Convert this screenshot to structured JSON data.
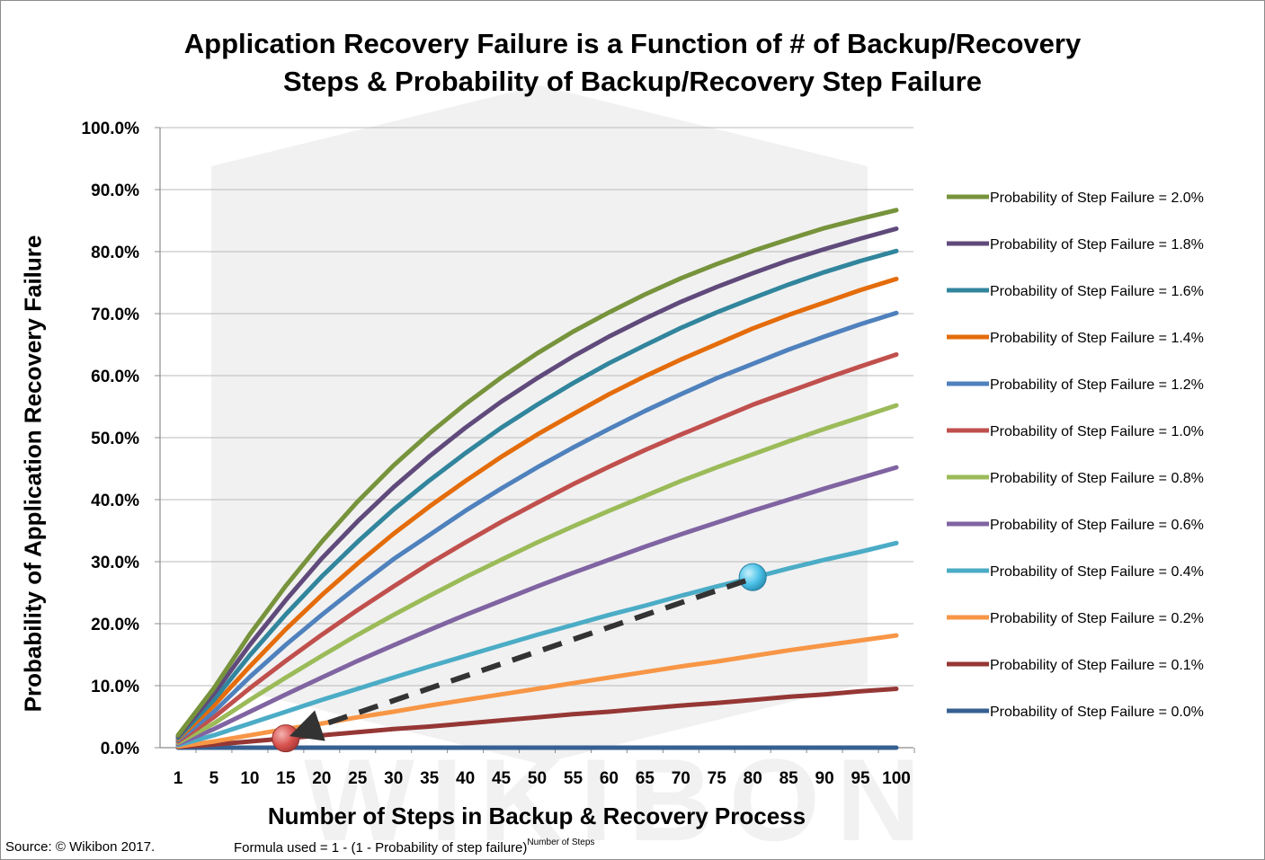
{
  "title_lines": [
    "Application Recovery Failure is a Function of # of Backup/Recovery",
    "Steps & Probability of Backup/Recovery Step Failure"
  ],
  "source": "Source:  © Wikibon 2017.",
  "formula": {
    "text": "Formula used = 1 - (1 - Probability of step failure)",
    "superscript": "Number of Steps"
  },
  "watermark": "WIKIBON",
  "chart_data": {
    "type": "line",
    "title": "Application Recovery Failure is a Function of # of Backup/Recovery Steps & Probability of Backup/Recovery Step Failure",
    "xlabel": "Number of Steps in Backup & Recovery Process",
    "ylabel": "Probability of Application Recovery Failure",
    "x": [
      1,
      5,
      10,
      15,
      20,
      25,
      30,
      35,
      40,
      45,
      50,
      55,
      60,
      65,
      70,
      75,
      80,
      85,
      90,
      95,
      100
    ],
    "x_tick_labels": [
      "1",
      "5",
      "10",
      "15",
      "20",
      "25",
      "30",
      "35",
      "40",
      "45",
      "50",
      "55",
      "60",
      "65",
      "70",
      "75",
      "80",
      "85",
      "90",
      "95",
      "100"
    ],
    "ylim": [
      0,
      1
    ],
    "y_ticks": [
      0,
      0.1,
      0.2,
      0.3,
      0.4,
      0.5,
      0.6,
      0.7,
      0.8,
      0.9,
      1.0
    ],
    "y_tick_labels": [
      "0.0%",
      "10.0%",
      "20.0%",
      "30.0%",
      "40.0%",
      "50.0%",
      "60.0%",
      "70.0%",
      "80.0%",
      "90.0%",
      "100.0%"
    ],
    "grid": "horizontal",
    "legend_position": "right",
    "series": [
      {
        "name": "Probability of Step Failure = 2.0%",
        "color": "#77933c",
        "values": [
          0.02,
          0.096,
          0.183,
          0.261,
          0.332,
          0.397,
          0.455,
          0.507,
          0.554,
          0.597,
          0.636,
          0.671,
          0.702,
          0.731,
          0.757,
          0.78,
          0.801,
          0.82,
          0.838,
          0.853,
          0.867
        ]
      },
      {
        "name": "Probability of Step Failure = 1.8%",
        "color": "#604a7b",
        "values": [
          0.018,
          0.087,
          0.166,
          0.238,
          0.305,
          0.365,
          0.42,
          0.47,
          0.516,
          0.558,
          0.596,
          0.631,
          0.663,
          0.692,
          0.719,
          0.743,
          0.765,
          0.786,
          0.804,
          0.821,
          0.837
        ]
      },
      {
        "name": "Probability of Step Failure = 1.6%",
        "color": "#31859c",
        "values": [
          0.016,
          0.077,
          0.149,
          0.215,
          0.276,
          0.332,
          0.384,
          0.431,
          0.475,
          0.516,
          0.553,
          0.588,
          0.62,
          0.649,
          0.677,
          0.702,
          0.725,
          0.747,
          0.767,
          0.785,
          0.801
        ]
      },
      {
        "name": "Probability of Step Failure = 1.4%",
        "color": "#e46c0a",
        "values": [
          0.014,
          0.068,
          0.131,
          0.191,
          0.246,
          0.297,
          0.345,
          0.389,
          0.43,
          0.469,
          0.505,
          0.538,
          0.57,
          0.599,
          0.626,
          0.651,
          0.676,
          0.698,
          0.718,
          0.738,
          0.756
        ]
      },
      {
        "name": "Probability of Step Failure = 1.2%",
        "color": "#4f81bd",
        "values": [
          0.012,
          0.058,
          0.114,
          0.166,
          0.214,
          0.26,
          0.304,
          0.343,
          0.382,
          0.418,
          0.452,
          0.484,
          0.514,
          0.543,
          0.57,
          0.596,
          0.619,
          0.642,
          0.663,
          0.683,
          0.701
        ]
      },
      {
        "name": "Probability of Step Failure = 1.0%",
        "color": "#c0504d",
        "values": [
          0.01,
          0.049,
          0.096,
          0.14,
          0.182,
          0.222,
          0.26,
          0.297,
          0.331,
          0.364,
          0.395,
          0.425,
          0.453,
          0.48,
          0.505,
          0.529,
          0.553,
          0.574,
          0.595,
          0.615,
          0.634
        ]
      },
      {
        "name": "Probability of Step Failure = 0.8%",
        "color": "#9bbb59",
        "values": [
          0.008,
          0.039,
          0.077,
          0.113,
          0.148,
          0.182,
          0.214,
          0.245,
          0.275,
          0.303,
          0.331,
          0.357,
          0.382,
          0.406,
          0.43,
          0.452,
          0.473,
          0.494,
          0.514,
          0.533,
          0.552
        ]
      },
      {
        "name": "Probability of Step Failure = 0.6%",
        "color": "#8064a2",
        "values": [
          0.006,
          0.03,
          0.058,
          0.086,
          0.113,
          0.14,
          0.165,
          0.19,
          0.214,
          0.237,
          0.26,
          0.282,
          0.303,
          0.324,
          0.344,
          0.363,
          0.382,
          0.4,
          0.418,
          0.435,
          0.452
        ]
      },
      {
        "name": "Probability of Step Failure = 0.4%",
        "color": "#4bacc6",
        "values": [
          0.004,
          0.02,
          0.039,
          0.058,
          0.077,
          0.095,
          0.113,
          0.131,
          0.148,
          0.165,
          0.182,
          0.198,
          0.214,
          0.229,
          0.245,
          0.26,
          0.274,
          0.289,
          0.303,
          0.316,
          0.33
        ]
      },
      {
        "name": "Probability of Step Failure = 0.2%",
        "color": "#f79646",
        "values": [
          0.002,
          0.01,
          0.02,
          0.03,
          0.039,
          0.049,
          0.058,
          0.068,
          0.077,
          0.086,
          0.095,
          0.104,
          0.113,
          0.122,
          0.131,
          0.139,
          0.148,
          0.157,
          0.165,
          0.173,
          0.181
        ]
      },
      {
        "name": "Probability of Step Failure = 0.1%",
        "color": "#953735",
        "values": [
          0.001,
          0.005,
          0.01,
          0.015,
          0.02,
          0.025,
          0.03,
          0.034,
          0.039,
          0.044,
          0.049,
          0.054,
          0.058,
          0.063,
          0.068,
          0.072,
          0.077,
          0.082,
          0.086,
          0.091,
          0.095
        ]
      },
      {
        "name": "Probability of Step Failure = 0.0%",
        "color": "#376092",
        "values": [
          0,
          0,
          0,
          0,
          0,
          0,
          0,
          0,
          0,
          0,
          0,
          0,
          0,
          0,
          0,
          0,
          0,
          0,
          0,
          0,
          0
        ]
      }
    ],
    "annotations": {
      "start_marker": {
        "x": 15,
        "y": 0.015,
        "color": "#d9534f"
      },
      "end_marker": {
        "x": 80,
        "y": 0.275,
        "color": "#4bc1e8"
      },
      "arrow": {
        "from": "end_marker",
        "to": "start_marker",
        "style": "dashed",
        "color": "#333333"
      }
    }
  }
}
